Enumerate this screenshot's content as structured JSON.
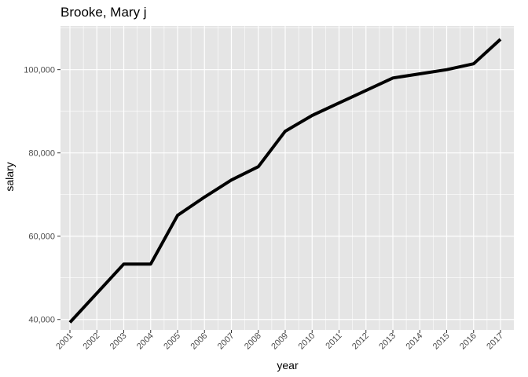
{
  "chart_data": {
    "type": "line",
    "title": "Brooke, Mary j",
    "xlabel": "year",
    "ylabel": "salary",
    "x": [
      "2001",
      "2002",
      "2003",
      "2004",
      "2005",
      "2006",
      "2007",
      "2008",
      "2009",
      "2010",
      "2011",
      "2012",
      "2013",
      "2014",
      "2015",
      "2016",
      "2017"
    ],
    "series": [
      {
        "values": [
          39300,
          46300,
          53300,
          53300,
          65000,
          69400,
          73500,
          76700,
          85200,
          89000,
          92000,
          95000,
          98000,
          99000,
          100000,
          101400,
          107300
        ]
      }
    ],
    "ylim": [
      37500,
      110500
    ],
    "yticks": [
      40000,
      60000,
      80000,
      100000
    ],
    "ytick_labels": [
      "40,000",
      "60,000",
      "80,000",
      "100,000"
    ],
    "grid": true,
    "legend": "none",
    "colors": {
      "panel": "#e5e5e5",
      "grid": "#ffffff",
      "line": "#000000"
    }
  }
}
